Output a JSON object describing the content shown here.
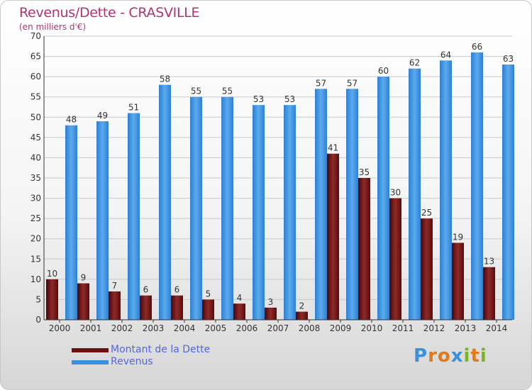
{
  "header": {
    "title": "Revenus/Dette - CRASVILLE",
    "subtitle": "(en milliers d'€)"
  },
  "chart_data": {
    "type": "bar",
    "categories": [
      "2000",
      "2001",
      "2002",
      "2003",
      "2004",
      "2005",
      "2006",
      "2007",
      "2008",
      "2009",
      "2010",
      "2011",
      "2012",
      "2013",
      "2014"
    ],
    "series": [
      {
        "name": "Montant de la Dette",
        "color": "#7a1a1a",
        "values": [
          10,
          9,
          7,
          6,
          6,
          5,
          4,
          3,
          2,
          41,
          35,
          30,
          25,
          19,
          13
        ]
      },
      {
        "name": "Revenus",
        "color": "#3a8fdf",
        "values": [
          48,
          49,
          51,
          58,
          55,
          55,
          53,
          53,
          57,
          57,
          60,
          62,
          64,
          66,
          63
        ]
      }
    ],
    "ylim": [
      0,
      70
    ],
    "yticks": [
      0,
      5,
      10,
      15,
      20,
      25,
      30,
      35,
      40,
      45,
      50,
      55,
      60,
      65,
      70
    ],
    "grid": true,
    "legend": "bottom-left"
  },
  "legend": {
    "items": [
      {
        "label": "Montant de la Dette",
        "color": "#6b0f0f"
      },
      {
        "label": "Revenus",
        "color": "#3a8fdf"
      }
    ]
  },
  "logo": {
    "letters": [
      {
        "ch": "P",
        "color": "#3a8fdf"
      },
      {
        "ch": "r",
        "color": "#e07a1f"
      },
      {
        "ch": "o",
        "color": "#e07a1f"
      },
      {
        "ch": "x",
        "color": "#3a8fdf"
      },
      {
        "ch": "i",
        "color": "#7ab51d"
      },
      {
        "ch": "t",
        "color": "#e07a1f"
      },
      {
        "ch": "i",
        "color": "#7ab51d"
      }
    ]
  }
}
